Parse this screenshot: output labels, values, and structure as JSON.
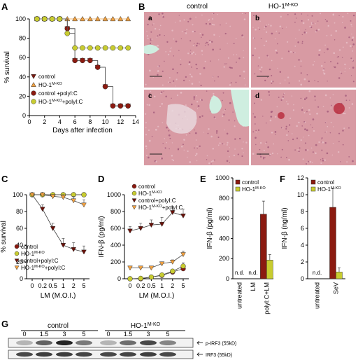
{
  "panels": {
    "A": {
      "letter": "A",
      "chart_data": {
        "type": "line",
        "xlabel": "Days after infection",
        "ylabel": "% survival",
        "xlim": [
          0,
          14
        ],
        "ylim": [
          0,
          100
        ],
        "xticks": [
          0,
          2,
          4,
          6,
          8,
          10,
          12,
          14
        ],
        "yticks": [
          0,
          20,
          40,
          60,
          80,
          100
        ],
        "legend_position": "bottom-left",
        "series": [
          {
            "name": "control",
            "color": "#7a1a10",
            "marker": "triangle-down",
            "x": [
              1,
              2,
              3,
              4,
              5,
              6,
              7,
              8,
              9,
              10,
              11,
              12,
              13
            ],
            "y": [
              100,
              100,
              100,
              100,
              90,
              57,
              57,
              57,
              50,
              30,
              10,
              10,
              10
            ]
          },
          {
            "name": "HO-1M-KO",
            "color": "#f0a040",
            "marker": "triangle-up",
            "x": [
              1,
              2,
              3,
              4,
              5,
              6,
              7,
              8,
              9,
              10,
              11,
              12,
              13
            ],
            "y": [
              100,
              100,
              100,
              100,
              100,
              100,
              100,
              100,
              100,
              100,
              100,
              100,
              100
            ]
          },
          {
            "name": "control +polyI:C",
            "color": "#8b1a10",
            "marker": "circle",
            "x": [
              1,
              2,
              3,
              4,
              5,
              6,
              7,
              8,
              9,
              10,
              11,
              12,
              13
            ],
            "y": [
              100,
              100,
              100,
              100,
              90,
              57,
              57,
              57,
              50,
              30,
              10,
              10,
              10
            ]
          },
          {
            "name": "HO-1M-KO+polyI:C",
            "color": "#c8cc30",
            "marker": "circle",
            "x": [
              1,
              2,
              3,
              4,
              5,
              6,
              7,
              8,
              9,
              10,
              11,
              12,
              13
            ],
            "y": [
              100,
              100,
              100,
              100,
              85,
              70,
              70,
              70,
              70,
              70,
              70,
              70,
              70
            ]
          }
        ]
      }
    },
    "B": {
      "letter": "B",
      "col_titles": [
        "control",
        "HO-1M-KO"
      ],
      "sub_labels": [
        "a",
        "b",
        "c",
        "d"
      ],
      "tissue_color": "#d89aa3",
      "lesion_color": "#cfeee0"
    },
    "C": {
      "letter": "C",
      "chart_data": {
        "type": "line",
        "xlabel": "LM (M.O.I.)",
        "ylabel": "% survival",
        "categories": [
          "0",
          "0.2",
          "0.5",
          "1",
          "2",
          "5"
        ],
        "ylim": [
          0,
          100
        ],
        "yticks": [
          0,
          20,
          40,
          60,
          80,
          100
        ],
        "legend_position": "bottom-left",
        "series": [
          {
            "name": "control",
            "color": "#8b1a10",
            "marker": "circle",
            "values": [
              100,
              100,
              100,
              100,
              100,
              100
            ],
            "err": [
              2,
              2,
              2,
              2,
              2,
              2
            ]
          },
          {
            "name": "HO-1M-KO",
            "color": "#c8cc30",
            "marker": "circle",
            "values": [
              100,
              100,
              100,
              100,
              100,
              100
            ],
            "err": [
              2,
              2,
              2,
              2,
              2,
              2
            ]
          },
          {
            "name": "control+polyI:C",
            "color": "#6a1008",
            "marker": "triangle-down",
            "values": [
              100,
              83,
              60,
              40,
              35,
              32
            ],
            "err": [
              3,
              5,
              6,
              8,
              8,
              7
            ]
          },
          {
            "name": "HO-1M-KO+polyI:C",
            "color": "#f0a040",
            "marker": "triangle-down",
            "values": [
              100,
              100,
              98,
              97,
              93,
              88
            ],
            "err": [
              2,
              2,
              3,
              4,
              5,
              6
            ]
          }
        ]
      }
    },
    "D": {
      "letter": "D",
      "chart_data": {
        "type": "line",
        "xlabel": "LM (M.O.I.)",
        "ylabel": "IFN-β (pg/ml)",
        "categories": [
          "0",
          "0.2",
          "0.5",
          "1",
          "2",
          "5"
        ],
        "ylim": [
          0,
          1000
        ],
        "yticks": [
          0,
          200,
          400,
          600,
          800,
          1000
        ],
        "legend_position": "top-left",
        "series": [
          {
            "name": "control",
            "color": "#8b1a10",
            "marker": "circle",
            "values": [
              0,
              0,
              20,
              40,
              80,
              120
            ],
            "err": [
              5,
              5,
              10,
              15,
              20,
              40
            ]
          },
          {
            "name": "HO-1M-KO",
            "color": "#c8cc30",
            "marker": "circle",
            "values": [
              0,
              5,
              20,
              45,
              90,
              150
            ],
            "err": [
              5,
              5,
              10,
              15,
              20,
              40
            ]
          },
          {
            "name": "control+polyI:C",
            "color": "#6a1008",
            "marker": "triangle-down",
            "values": [
              570,
              600,
              640,
              650,
              790,
              750
            ],
            "err": [
              50,
              60,
              60,
              80,
              70,
              80
            ]
          },
          {
            "name": "HO-1M-KO+polyI:C",
            "color": "#f0a040",
            "marker": "triangle-down",
            "values": [
              130,
              130,
              130,
              180,
              200,
              290
            ],
            "err": [
              15,
              15,
              20,
              20,
              25,
              40
            ]
          }
        ]
      }
    },
    "E": {
      "letter": "E",
      "chart_data": {
        "type": "bar",
        "ylabel": "IFN-β (pg/ml)",
        "categories": [
          "untreated",
          "LM",
          "polyI:C+LM"
        ],
        "ylim": [
          0,
          1000
        ],
        "yticks": [
          0,
          200,
          400,
          600,
          800,
          1000
        ],
        "legend_position": "top-left",
        "nd_label": "n.d.",
        "series": [
          {
            "name": "control",
            "color": "#8b1a10",
            "values": [
              null,
              null,
              640
            ],
            "err": [
              null,
              null,
              130
            ]
          },
          {
            "name": "HO-1M-KO",
            "color": "#c8cc30",
            "values": [
              null,
              null,
              185
            ],
            "err": [
              null,
              null,
              55
            ]
          }
        ]
      }
    },
    "F": {
      "letter": "F",
      "chart_data": {
        "type": "bar",
        "ylabel": "IFN-β (ng/ml)",
        "categories": [
          "untreated",
          "SeV"
        ],
        "ylim": [
          0,
          12
        ],
        "yticks": [
          0,
          2,
          4,
          6,
          8,
          10,
          12
        ],
        "legend_position": "top-left",
        "nd_label": "n.d.",
        "series": [
          {
            "name": "control",
            "color": "#8b1a10",
            "values": [
              null,
              8.5
            ],
            "err": [
              null,
              2.2
            ]
          },
          {
            "name": "HO-1M-KO",
            "color": "#c8cc30",
            "values": [
              null,
              0.8
            ],
            "err": [
              null,
              0.5
            ]
          }
        ]
      }
    },
    "G": {
      "letter": "G",
      "group_labels": [
        "control",
        "HO-1M-KO"
      ],
      "lane_times": [
        "0",
        "1.5",
        "3",
        "5",
        "0",
        "1.5",
        "3",
        "5"
      ],
      "band_labels": [
        "p-IRF3 (55kD)",
        "IRF3 (55kD)"
      ],
      "p_irf3_intensity": [
        0.25,
        0.6,
        0.85,
        0.5,
        0.25,
        0.55,
        0.7,
        0.45
      ],
      "irf3_intensity": [
        0.7,
        0.75,
        0.75,
        0.72,
        0.7,
        0.72,
        0.74,
        0.7
      ]
    }
  }
}
